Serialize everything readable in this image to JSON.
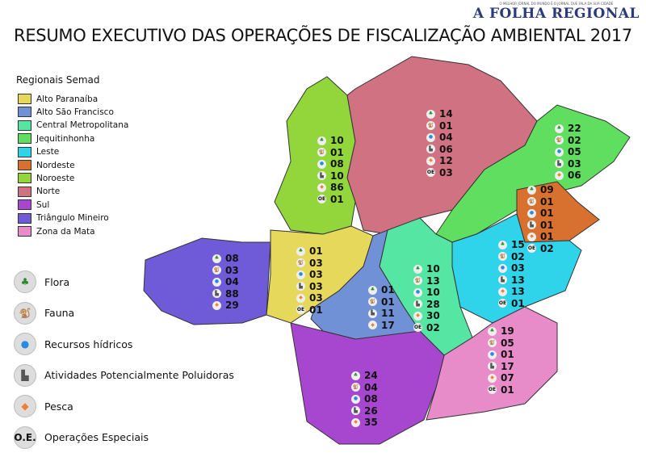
{
  "title": "RESUMO EXECUTIVO DAS OPERAÇÕES DE FISCALIZAÇÃO AMBIENTAL 2017",
  "brand": {
    "tagline": "O MELHOR JORNAL DO MUNDO É O JORNAL QUE FALA DA SUA CIDADE",
    "name": "A FOLHA REGIONAL"
  },
  "legend": {
    "title": "Regionais Semad",
    "items": [
      {
        "label": "Alto Paranaíba",
        "color": "#e6d85a"
      },
      {
        "label": "Alto São Francisco",
        "color": "#7191d6"
      },
      {
        "label": "Central Metropolitana",
        "color": "#56e6a4"
      },
      {
        "label": "Jequitinhonha",
        "color": "#5fde5f"
      },
      {
        "label": "Leste",
        "color": "#2fd3ea"
      },
      {
        "label": "Nordeste",
        "color": "#d8702f"
      },
      {
        "label": "Noroeste",
        "color": "#92d63c"
      },
      {
        "label": "Norte",
        "color": "#d07282"
      },
      {
        "label": "Sul",
        "color": "#a747cf"
      },
      {
        "label": "Triângulo Mineiro",
        "color": "#6f5bd8"
      },
      {
        "label": "Zona da Mata",
        "color": "#e88bc9"
      }
    ]
  },
  "categories": [
    {
      "key": "flora",
      "label": "Flora",
      "icon": "tree-icon"
    },
    {
      "key": "fauna",
      "label": "Fauna",
      "icon": "monkey-icon"
    },
    {
      "key": "agua",
      "label": "Recursos hídricos",
      "icon": "water-drop-icon"
    },
    {
      "key": "poluidoras",
      "label": "Atividades Potencialmente Poluidoras",
      "icon": "factory-icon"
    },
    {
      "key": "pesca",
      "label": "Pesca",
      "icon": "fish-icon"
    },
    {
      "key": "oe",
      "label": "Operações Especiais",
      "icon": "oe-icon",
      "abbr": "O.E."
    }
  ],
  "regions": [
    {
      "name": "Noroeste",
      "values": [
        [
          "flora",
          "10"
        ],
        [
          "fauna",
          "01"
        ],
        [
          "agua",
          "08"
        ],
        [
          "poluidoras",
          "10"
        ],
        [
          "pesca",
          "86"
        ],
        [
          "oe",
          "01"
        ]
      ]
    },
    {
      "name": "Norte",
      "values": [
        [
          "flora",
          "14"
        ],
        [
          "fauna",
          "01"
        ],
        [
          "agua",
          "04"
        ],
        [
          "poluidoras",
          "06"
        ],
        [
          "pesca",
          "12"
        ],
        [
          "oe",
          "03"
        ]
      ]
    },
    {
      "name": "Jequitinhonha",
      "values": [
        [
          "flora",
          "22"
        ],
        [
          "fauna",
          "02"
        ],
        [
          "agua",
          "05"
        ],
        [
          "poluidoras",
          "03"
        ],
        [
          "pesca",
          "06"
        ]
      ]
    },
    {
      "name": "Nordeste",
      "values": [
        [
          "flora",
          "09"
        ],
        [
          "fauna",
          "01"
        ],
        [
          "agua",
          "01"
        ],
        [
          "poluidoras",
          "01"
        ],
        [
          "pesca",
          "01"
        ],
        [
          "oe",
          "02"
        ]
      ]
    },
    {
      "name": "Triângulo Mineiro",
      "values": [
        [
          "flora",
          "08"
        ],
        [
          "fauna",
          "03"
        ],
        [
          "agua",
          "04"
        ],
        [
          "poluidoras",
          "88"
        ],
        [
          "pesca",
          "29"
        ]
      ]
    },
    {
      "name": "Alto Paranaíba",
      "values": [
        [
          "flora",
          "01"
        ],
        [
          "fauna",
          "03"
        ],
        [
          "agua",
          "03"
        ],
        [
          "poluidoras",
          "03"
        ],
        [
          "pesca",
          "03"
        ],
        [
          "oe",
          "01"
        ]
      ]
    },
    {
      "name": "Alto São Francisco",
      "values": [
        [
          "flora",
          "01"
        ],
        [
          "fauna",
          "01"
        ],
        [
          "poluidoras",
          "11"
        ],
        [
          "pesca",
          "17"
        ]
      ]
    },
    {
      "name": "Central Metropolitana",
      "values": [
        [
          "flora",
          "10"
        ],
        [
          "fauna",
          "13"
        ],
        [
          "agua",
          "10"
        ],
        [
          "poluidoras",
          "28"
        ],
        [
          "pesca",
          "30"
        ],
        [
          "oe",
          "02"
        ]
      ]
    },
    {
      "name": "Leste",
      "values": [
        [
          "flora",
          "15"
        ],
        [
          "fauna",
          "02"
        ],
        [
          "agua",
          "03"
        ],
        [
          "poluidoras",
          "13"
        ],
        [
          "pesca",
          "13"
        ],
        [
          "oe",
          "01"
        ]
      ]
    },
    {
      "name": "Zona da Mata",
      "values": [
        [
          "flora",
          "19"
        ],
        [
          "fauna",
          "05"
        ],
        [
          "agua",
          "01"
        ],
        [
          "poluidoras",
          "17"
        ],
        [
          "pesca",
          "07"
        ],
        [
          "oe",
          "01"
        ]
      ]
    },
    {
      "name": "Sul",
      "values": [
        [
          "flora",
          "24"
        ],
        [
          "fauna",
          "04"
        ],
        [
          "agua",
          "08"
        ],
        [
          "poluidoras",
          "26"
        ],
        [
          "pesca",
          "35"
        ]
      ]
    }
  ]
}
